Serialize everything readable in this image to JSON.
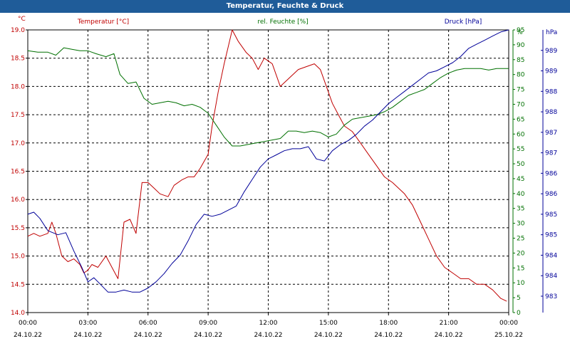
{
  "window": {
    "title": "Temperatur, Feuchte & Druck"
  },
  "chart_data": {
    "type": "line",
    "title": "Temperatur, Feuchte & Druck",
    "grid": true,
    "x_range": [
      "00:00 24.10.22",
      "00:00 25.10.22"
    ],
    "x_ticks": [
      {
        "time": "00:00",
        "date": "24.10.22"
      },
      {
        "time": "03:00",
        "date": "24.10.22"
      },
      {
        "time": "06:00",
        "date": "24.10.22"
      },
      {
        "time": "09:00",
        "date": "24.10.22"
      },
      {
        "time": "12:00",
        "date": "24.10.22"
      },
      {
        "time": "15:00",
        "date": "24.10.22"
      },
      {
        "time": "18:00",
        "date": "24.10.22"
      },
      {
        "time": "21:00",
        "date": "24.10.22"
      },
      {
        "time": "00:00",
        "date": "25.10.22"
      }
    ],
    "axes": {
      "temperature": {
        "label": "Temperatur [°C]",
        "unit": "°C",
        "ylim": [
          14.0,
          19.0
        ],
        "ticks": [
          "14.0",
          "14.5",
          "15.0",
          "15.5",
          "16.0",
          "16.5",
          "17.0",
          "17.5",
          "18.0",
          "18.5",
          "19.0"
        ],
        "color": "#c00000"
      },
      "humidity": {
        "label": "rel. Feuchte [%]",
        "unit": "%",
        "ylim": [
          0,
          95
        ],
        "ticks": [
          "0",
          "5",
          "10",
          "15",
          "20",
          "25",
          "30",
          "35",
          "40",
          "45",
          "50",
          "55",
          "60",
          "65",
          "70",
          "75",
          "80",
          "85",
          "90",
          "95"
        ],
        "color": "#007000"
      },
      "pressure": {
        "label": "Druck [hPa]",
        "unit": "hPa",
        "ylim": [
          982.6,
          989.5
        ],
        "ticks": [
          "983",
          "984",
          "984",
          "985",
          "985",
          "986",
          "986",
          "987",
          "987",
          "988",
          "988",
          "989",
          "989"
        ],
        "color": "#000099"
      }
    },
    "series": [
      {
        "name": "Temperatur [°C]",
        "axis": "temperature",
        "color": "#c00000",
        "points": [
          [
            0.0,
            15.35
          ],
          [
            0.3,
            15.4
          ],
          [
            0.6,
            15.35
          ],
          [
            1.0,
            15.4
          ],
          [
            1.2,
            15.6
          ],
          [
            1.4,
            15.4
          ],
          [
            1.7,
            15.0
          ],
          [
            2.0,
            14.9
          ],
          [
            2.3,
            14.95
          ],
          [
            2.6,
            14.85
          ],
          [
            2.8,
            14.7
          ],
          [
            3.0,
            14.75
          ],
          [
            3.2,
            14.85
          ],
          [
            3.5,
            14.8
          ],
          [
            3.9,
            15.0
          ],
          [
            4.2,
            14.8
          ],
          [
            4.5,
            14.6
          ],
          [
            4.8,
            15.6
          ],
          [
            5.1,
            15.65
          ],
          [
            5.4,
            15.4
          ],
          [
            5.7,
            16.3
          ],
          [
            6.0,
            16.3
          ],
          [
            6.3,
            16.2
          ],
          [
            6.6,
            16.1
          ],
          [
            7.0,
            16.05
          ],
          [
            7.3,
            16.25
          ],
          [
            7.7,
            16.35
          ],
          [
            8.0,
            16.4
          ],
          [
            8.3,
            16.4
          ],
          [
            8.6,
            16.55
          ],
          [
            9.0,
            16.8
          ],
          [
            9.2,
            17.3
          ],
          [
            9.5,
            17.9
          ],
          [
            9.8,
            18.4
          ],
          [
            10.0,
            18.7
          ],
          [
            10.2,
            19.0
          ],
          [
            10.5,
            18.8
          ],
          [
            10.9,
            18.6
          ],
          [
            11.2,
            18.5
          ],
          [
            11.5,
            18.3
          ],
          [
            11.8,
            18.5
          ],
          [
            12.2,
            18.4
          ],
          [
            12.6,
            18.0
          ],
          [
            12.9,
            18.1
          ],
          [
            13.2,
            18.2
          ],
          [
            13.5,
            18.3
          ],
          [
            13.9,
            18.35
          ],
          [
            14.3,
            18.4
          ],
          [
            14.6,
            18.3
          ],
          [
            14.9,
            18.0
          ],
          [
            15.2,
            17.7
          ],
          [
            15.5,
            17.5
          ],
          [
            15.8,
            17.3
          ],
          [
            16.2,
            17.2
          ],
          [
            16.6,
            17.0
          ],
          [
            17.0,
            16.8
          ],
          [
            17.4,
            16.6
          ],
          [
            17.8,
            16.4
          ],
          [
            18.2,
            16.3
          ],
          [
            18.5,
            16.2
          ],
          [
            18.8,
            16.1
          ],
          [
            19.2,
            15.9
          ],
          [
            19.6,
            15.6
          ],
          [
            20.0,
            15.3
          ],
          [
            20.4,
            15.0
          ],
          [
            20.8,
            14.8
          ],
          [
            21.2,
            14.7
          ],
          [
            21.6,
            14.6
          ],
          [
            22.0,
            14.6
          ],
          [
            22.4,
            14.5
          ],
          [
            22.8,
            14.5
          ],
          [
            23.2,
            14.4
          ],
          [
            23.6,
            14.25
          ],
          [
            23.9,
            14.2
          ]
        ]
      },
      {
        "name": "rel. Feuchte [%]",
        "axis": "humidity",
        "color": "#007000",
        "points": [
          [
            0.0,
            88
          ],
          [
            0.5,
            87.5
          ],
          [
            1.0,
            87.5
          ],
          [
            1.4,
            86.5
          ],
          [
            1.8,
            89
          ],
          [
            2.2,
            88.5
          ],
          [
            2.6,
            88
          ],
          [
            3.0,
            88
          ],
          [
            3.4,
            87
          ],
          [
            3.9,
            86
          ],
          [
            4.3,
            87
          ],
          [
            4.6,
            80
          ],
          [
            5.0,
            77
          ],
          [
            5.4,
            77.5
          ],
          [
            5.8,
            72
          ],
          [
            6.2,
            70
          ],
          [
            6.6,
            70.5
          ],
          [
            7.0,
            71
          ],
          [
            7.4,
            70.5
          ],
          [
            7.8,
            69.5
          ],
          [
            8.2,
            70
          ],
          [
            8.6,
            69
          ],
          [
            9.0,
            67
          ],
          [
            9.4,
            63
          ],
          [
            9.8,
            59
          ],
          [
            10.2,
            56
          ],
          [
            10.6,
            56
          ],
          [
            11.0,
            56.5
          ],
          [
            11.4,
            57
          ],
          [
            11.8,
            57.5
          ],
          [
            12.2,
            58
          ],
          [
            12.6,
            58.5
          ],
          [
            13.0,
            61
          ],
          [
            13.4,
            61
          ],
          [
            13.8,
            60.5
          ],
          [
            14.2,
            61
          ],
          [
            14.6,
            60.5
          ],
          [
            15.0,
            59
          ],
          [
            15.4,
            60
          ],
          [
            15.8,
            63
          ],
          [
            16.2,
            65
          ],
          [
            16.6,
            65.5
          ],
          [
            17.0,
            66
          ],
          [
            17.4,
            66.5
          ],
          [
            17.8,
            67.5
          ],
          [
            18.2,
            69
          ],
          [
            18.6,
            71
          ],
          [
            19.0,
            73
          ],
          [
            19.4,
            74
          ],
          [
            19.8,
            75
          ],
          [
            20.2,
            77
          ],
          [
            20.6,
            79
          ],
          [
            21.0,
            80.5
          ],
          [
            21.4,
            81.5
          ],
          [
            21.8,
            82
          ],
          [
            22.2,
            82
          ],
          [
            22.6,
            82
          ],
          [
            23.0,
            81.5
          ],
          [
            23.4,
            82
          ],
          [
            23.8,
            82
          ],
          [
            24.0,
            82
          ]
        ]
      },
      {
        "name": "Druck [hPa]",
        "axis": "pressure",
        "color": "#000099",
        "points": [
          [
            0.0,
            985.0
          ],
          [
            0.3,
            985.05
          ],
          [
            0.6,
            984.9
          ],
          [
            1.0,
            984.6
          ],
          [
            1.5,
            984.5
          ],
          [
            1.9,
            984.55
          ],
          [
            2.3,
            984.1
          ],
          [
            2.7,
            983.7
          ],
          [
            3.0,
            983.35
          ],
          [
            3.3,
            983.45
          ],
          [
            3.6,
            983.3
          ],
          [
            4.0,
            983.1
          ],
          [
            4.4,
            983.1
          ],
          [
            4.8,
            983.15
          ],
          [
            5.2,
            983.1
          ],
          [
            5.6,
            983.1
          ],
          [
            6.0,
            983.2
          ],
          [
            6.4,
            983.35
          ],
          [
            6.8,
            983.55
          ],
          [
            7.2,
            983.8
          ],
          [
            7.6,
            984.0
          ],
          [
            8.0,
            984.35
          ],
          [
            8.4,
            984.75
          ],
          [
            8.8,
            985.0
          ],
          [
            9.2,
            984.95
          ],
          [
            9.6,
            985.0
          ],
          [
            10.0,
            985.1
          ],
          [
            10.4,
            985.2
          ],
          [
            10.8,
            985.55
          ],
          [
            11.2,
            985.85
          ],
          [
            11.6,
            986.15
          ],
          [
            12.0,
            986.35
          ],
          [
            12.4,
            986.45
          ],
          [
            12.8,
            986.55
          ],
          [
            13.2,
            986.6
          ],
          [
            13.6,
            986.6
          ],
          [
            14.0,
            986.65
          ],
          [
            14.4,
            986.35
          ],
          [
            14.8,
            986.3
          ],
          [
            15.2,
            986.55
          ],
          [
            15.6,
            986.7
          ],
          [
            16.0,
            986.8
          ],
          [
            16.4,
            986.95
          ],
          [
            16.8,
            987.15
          ],
          [
            17.2,
            987.3
          ],
          [
            17.6,
            987.5
          ],
          [
            18.0,
            987.7
          ],
          [
            18.4,
            987.85
          ],
          [
            18.8,
            988.0
          ],
          [
            19.2,
            988.15
          ],
          [
            19.6,
            988.3
          ],
          [
            20.0,
            988.45
          ],
          [
            20.4,
            988.5
          ],
          [
            20.8,
            988.6
          ],
          [
            21.2,
            988.7
          ],
          [
            21.6,
            988.85
          ],
          [
            22.0,
            989.05
          ],
          [
            22.4,
            989.15
          ],
          [
            22.8,
            989.25
          ],
          [
            23.2,
            989.35
          ],
          [
            23.6,
            989.45
          ],
          [
            24.0,
            989.5
          ]
        ]
      }
    ]
  }
}
